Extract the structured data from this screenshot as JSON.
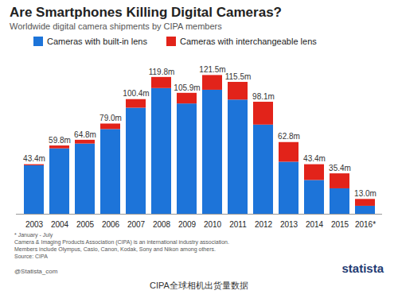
{
  "chart_data": {
    "type": "bar",
    "title": "Are Smartphones Killing Digital Cameras?",
    "subtitle": "Worldwide digital camera shipments by CIPA members",
    "categories": [
      "2003",
      "2004",
      "2005",
      "2006",
      "2007",
      "2008",
      "2009",
      "2010",
      "2011",
      "2012",
      "2013",
      "2014",
      "2015",
      "2016*"
    ],
    "series": [
      {
        "name": "Cameras with built-in lens",
        "color": "#1d74d9",
        "values": [
          42.5,
          57.3,
          61.5,
          74.2,
          92.9,
          110.1,
          96.6,
          108.6,
          100.0,
          78.1,
          45.6,
          29.6,
          22.3,
          7.0
        ]
      },
      {
        "name": "Cameras with interchangeable lens",
        "color": "#e2231a",
        "values": [
          0.9,
          2.5,
          3.3,
          4.8,
          7.5,
          9.7,
          9.3,
          12.9,
          15.5,
          20.0,
          17.2,
          13.8,
          13.1,
          6.0
        ]
      }
    ],
    "totals": [
      43.4,
      59.8,
      64.8,
      79.0,
      100.4,
      119.8,
      105.9,
      121.5,
      115.5,
      98.1,
      62.8,
      43.4,
      35.4,
      13.0
    ],
    "total_labels": [
      "43.4m",
      "59.8m",
      "64.8m",
      "79.0m",
      "100.4m",
      "119.8m",
      "105.9m",
      "121.5m",
      "115.5m",
      "98.1m",
      "62.8m",
      "43.4m",
      "35.4m",
      "13.0m"
    ],
    "ylim": [
      0,
      135
    ],
    "stacked": true,
    "data_labels": true,
    "tick_labels": "x",
    "grid": false,
    "legend": "top",
    "notes": [
      "* January - July",
      "Camera & Imaging Products Association (CIPA) is an international industry association.",
      "Members include Olympus, Casio, Canon, Kodak, Sony and Nikon among others.",
      "Source: CIPA"
    ],
    "credit": "@Statista_com",
    "brand": "statista",
    "caption": "CIPA全球相机出货量数据"
  }
}
